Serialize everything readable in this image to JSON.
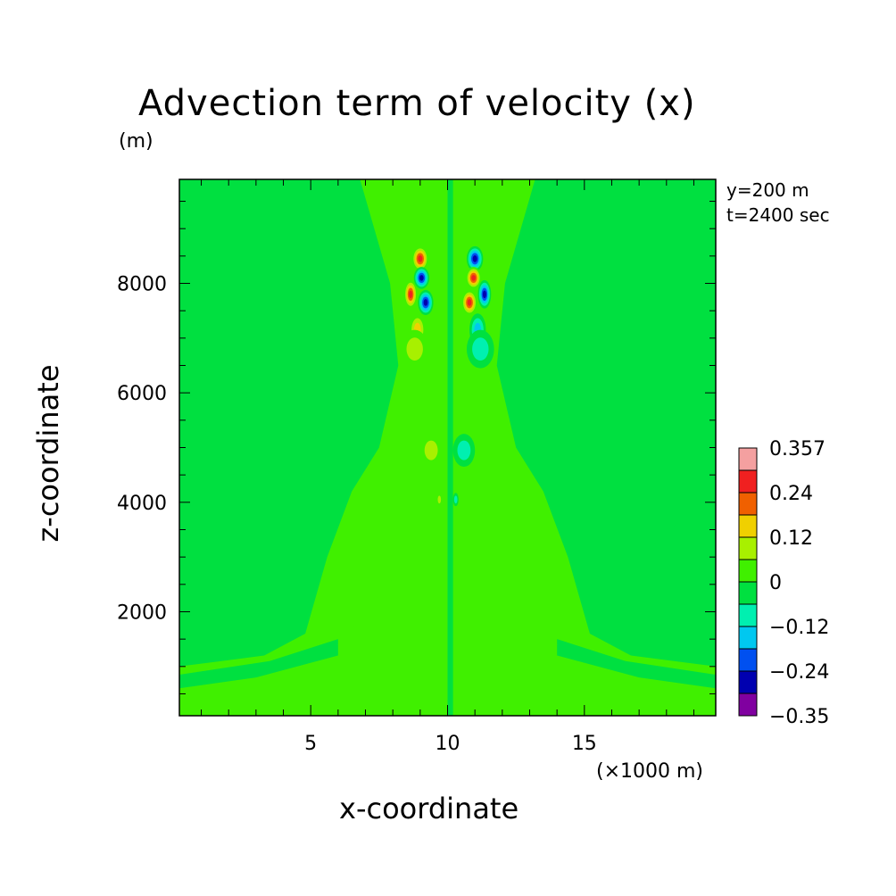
{
  "chart_data": {
    "type": "heatmap",
    "title": "Advection term of velocity (x)",
    "xlabel": "x-coordinate",
    "ylabel": "z-coordinate",
    "x_unit": "(×1000 m)",
    "y_unit": "(m)",
    "annotations": [
      "y=200 m",
      "t=2400 sec"
    ],
    "xlim": [
      0.2,
      19.8
    ],
    "ylim": [
      100,
      9900
    ],
    "x_ticks": [
      5,
      10,
      15
    ],
    "y_ticks": [
      2000,
      4000,
      6000,
      8000
    ],
    "x_tick_labels": [
      "5",
      "10",
      "15"
    ],
    "y_tick_labels": [
      "2000",
      "4000",
      "6000",
      "8000"
    ],
    "colorbar": {
      "labels": [
        "0.357",
        "0.24",
        "0.12",
        "0",
        "−0.12",
        "−0.24",
        "−0.35"
      ],
      "levels": [
        0.357,
        0.3,
        0.24,
        0.18,
        0.12,
        0.06,
        0,
        -0.06,
        -0.12,
        -0.18,
        -0.24,
        -0.3,
        -0.35
      ],
      "colors": [
        "#f4a0a0",
        "#f02020",
        "#f06000",
        "#f0d000",
        "#a8f000",
        "#40f000",
        "#00e040",
        "#00f0b0",
        "#00c8f0",
        "#0050f0",
        "#0000b0",
        "#8000a0"
      ]
    },
    "blobs": [
      {
        "x": 9.0,
        "z": 8450,
        "v": 0.3,
        "rx": 0.3,
        "rz": 230
      },
      {
        "x": 11.0,
        "z": 8450,
        "v": -0.3,
        "rx": 0.3,
        "rz": 230
      },
      {
        "x": 9.05,
        "z": 8100,
        "v": -0.28,
        "rx": 0.28,
        "rz": 200
      },
      {
        "x": 10.95,
        "z": 8100,
        "v": 0.28,
        "rx": 0.28,
        "rz": 200
      },
      {
        "x": 8.65,
        "z": 7800,
        "v": 0.27,
        "rx": 0.24,
        "rz": 260
      },
      {
        "x": 11.35,
        "z": 7800,
        "v": -0.27,
        "rx": 0.24,
        "rz": 260
      },
      {
        "x": 9.2,
        "z": 7650,
        "v": -0.26,
        "rx": 0.28,
        "rz": 230
      },
      {
        "x": 10.8,
        "z": 7650,
        "v": 0.26,
        "rx": 0.28,
        "rz": 230
      },
      {
        "x": 8.9,
        "z": 7150,
        "v": 0.14,
        "rx": 0.3,
        "rz": 300
      },
      {
        "x": 11.1,
        "z": 7150,
        "v": -0.14,
        "rx": 0.3,
        "rz": 300
      },
      {
        "x": 8.8,
        "z": 6800,
        "v": 0.08,
        "rx": 0.5,
        "rz": 350
      },
      {
        "x": 11.2,
        "z": 6800,
        "v": -0.08,
        "rx": 0.5,
        "rz": 350
      },
      {
        "x": 9.4,
        "z": 4950,
        "v": 0.1,
        "rx": 0.4,
        "rz": 300
      },
      {
        "x": 10.6,
        "z": 4950,
        "v": -0.1,
        "rx": 0.4,
        "rz": 300
      },
      {
        "x": 9.7,
        "z": 4050,
        "v": 0.1,
        "rx": 0.1,
        "rz": 120
      },
      {
        "x": 10.3,
        "z": 4050,
        "v": -0.1,
        "rx": 0.1,
        "rz": 120
      }
    ]
  }
}
